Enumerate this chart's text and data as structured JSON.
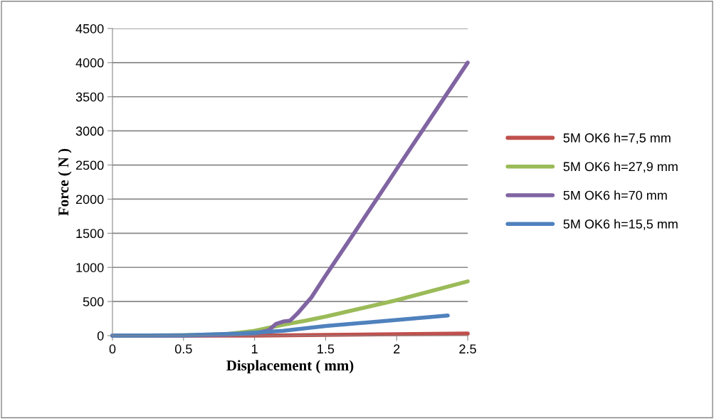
{
  "chart_data": {
    "type": "line",
    "xlabel": "Displacement ( mm)",
    "ylabel": "Force ( N )",
    "xlim": [
      0,
      2.5
    ],
    "xticks": [
      0,
      0.5,
      1,
      1.5,
      2,
      2.5
    ],
    "ylim": [
      0,
      4500
    ],
    "yticks": [
      0,
      500,
      1000,
      1500,
      2000,
      2500,
      3000,
      3500,
      4000,
      4500
    ],
    "grid": "y",
    "legend": "right",
    "marker": "none",
    "line_style": "solid",
    "series": [
      {
        "name": "5M OK6 h=7,5 mm",
        "color": "#c0504d",
        "x": [
          0,
          0.5,
          1.0,
          1.5,
          2.0,
          2.5
        ],
        "values": [
          0,
          0,
          0,
          10,
          20,
          30
        ]
      },
      {
        "name": "5M OK6 h=27,9 mm",
        "color": "#9bbb59",
        "x": [
          0,
          0.5,
          0.8,
          1.0,
          1.2,
          1.36,
          1.5,
          2.0,
          2.5
        ],
        "values": [
          0,
          5,
          20,
          70,
          160,
          220,
          280,
          520,
          795
        ]
      },
      {
        "name": "5M OK6 h=70 mm",
        "color": "#8064a2",
        "x": [
          0,
          0.5,
          0.8,
          1.0,
          1.1,
          1.15,
          1.2,
          1.25,
          1.3,
          1.4,
          1.5,
          1.7,
          2.0,
          2.25,
          2.5
        ],
        "values": [
          0,
          0,
          10,
          30,
          80,
          170,
          205,
          220,
          320,
          560,
          880,
          1500,
          2440,
          3220,
          4000
        ]
      },
      {
        "name": "5M OK6 h=15,5 mm",
        "color": "#4f81bd",
        "x": [
          0,
          0.5,
          0.9,
          1.0,
          1.2,
          1.5,
          2.0,
          2.36
        ],
        "values": [
          0,
          5,
          30,
          45,
          70,
          140,
          230,
          295
        ]
      }
    ]
  }
}
